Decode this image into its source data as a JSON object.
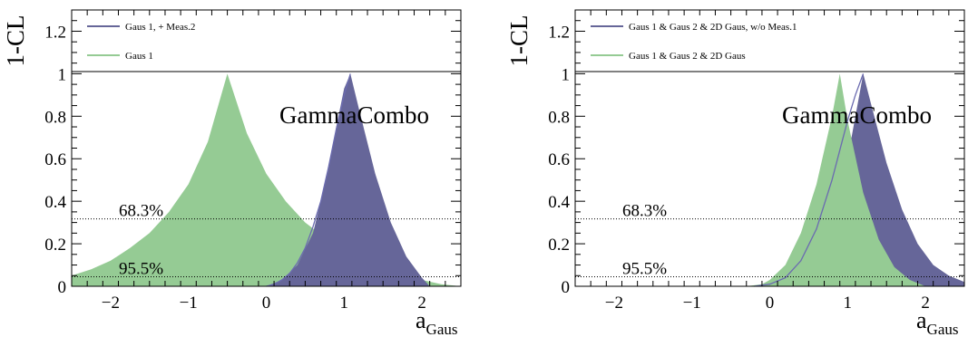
{
  "watermark": "GammaCombo",
  "colors": {
    "green_fill": "#95cb94",
    "blue_fill": "#666699",
    "blue_line": "#6b6bb0",
    "axis": "#000000"
  },
  "chart_data": [
    {
      "type": "area",
      "ylabel": "1-CL",
      "xlabel_main": "a",
      "xlabel_sub": "Gaus",
      "xlim": [
        -2.5,
        2.5
      ],
      "ylim": [
        0,
        1.3
      ],
      "x_ticks": [
        -2,
        -1,
        0,
        1,
        2
      ],
      "x_tick_labels": [
        "−2",
        "−1",
        "0",
        "1",
        "2"
      ],
      "y_ticks": [
        0,
        0.2,
        0.4,
        0.6,
        0.8,
        1,
        1.2
      ],
      "y_tick_labels": [
        "0",
        "0.2",
        "0.4",
        "0.6",
        "0.8",
        "1",
        "1.2"
      ],
      "cl_levels": [
        {
          "y": 0.317,
          "label": "68.3%"
        },
        {
          "y": 0.045,
          "label": "95.5%"
        }
      ],
      "legend": [
        {
          "label": "Gaus 1, + Meas.2",
          "style": "line",
          "color": "#666699"
        },
        {
          "label": "Gaus 1",
          "style": "line",
          "color": "#95cb94"
        }
      ],
      "series": [
        {
          "name": "Gaus 1",
          "style": "filled",
          "color": "#95cb94",
          "x": [
            -2.5,
            -2.25,
            -2.0,
            -1.75,
            -1.5,
            -1.25,
            -1.0,
            -0.75,
            -0.5,
            -0.25,
            0.0,
            0.25,
            0.5,
            0.75,
            1.0,
            1.25,
            1.5,
            1.75,
            2.0,
            2.25,
            2.5
          ],
          "y": [
            0.05,
            0.08,
            0.12,
            0.18,
            0.25,
            0.35,
            0.48,
            0.68,
            1.0,
            0.72,
            0.53,
            0.4,
            0.3,
            0.23,
            0.17,
            0.12,
            0.08,
            0.05,
            0.03,
            0.01,
            0.0
          ]
        },
        {
          "name": "Gaus 1, + Meas.2",
          "style": "filled",
          "color": "#666699",
          "x": [
            0.0,
            0.2,
            0.4,
            0.6,
            0.8,
            0.9,
            1.0,
            1.08,
            1.2,
            1.4,
            1.6,
            1.8,
            2.0,
            2.1
          ],
          "y": [
            0.0,
            0.03,
            0.1,
            0.25,
            0.55,
            0.75,
            0.93,
            1.0,
            0.82,
            0.53,
            0.3,
            0.14,
            0.04,
            0.0
          ]
        },
        {
          "name": "Gaus 1, + Meas.2 (lower contour)",
          "style": "line",
          "color": "#6b6bb0",
          "x": [
            0.0,
            0.1,
            0.2,
            0.3,
            0.4,
            0.5,
            0.6,
            0.7,
            0.8,
            0.9,
            1.0,
            1.08
          ],
          "y": [
            0.0,
            0.01,
            0.03,
            0.06,
            0.11,
            0.18,
            0.28,
            0.4,
            0.56,
            0.74,
            0.9,
            1.0
          ]
        }
      ]
    },
    {
      "type": "area",
      "ylabel": "1-CL",
      "xlabel_main": "a",
      "xlabel_sub": "Gaus",
      "xlim": [
        -2.5,
        2.5
      ],
      "ylim": [
        0,
        1.3
      ],
      "x_ticks": [
        -2,
        -1,
        0,
        1,
        2
      ],
      "x_tick_labels": [
        "−2",
        "−1",
        "0",
        "1",
        "2"
      ],
      "y_ticks": [
        0,
        0.2,
        0.4,
        0.6,
        0.8,
        1,
        1.2
      ],
      "y_tick_labels": [
        "0",
        "0.2",
        "0.4",
        "0.6",
        "0.8",
        "1",
        "1.2"
      ],
      "cl_levels": [
        {
          "y": 0.317,
          "label": "68.3%"
        },
        {
          "y": 0.045,
          "label": "95.5%"
        }
      ],
      "legend": [
        {
          "label": "Gaus 1 & Gaus 2 & 2D Gaus, w/o Meas.1",
          "style": "line",
          "color": "#666699"
        },
        {
          "label": "Gaus 1 & Gaus 2 & 2D Gaus",
          "style": "line",
          "color": "#95cb94"
        }
      ],
      "series": [
        {
          "name": "Gaus 1 & Gaus 2 & 2D Gaus, w/o Meas.1",
          "style": "filled",
          "color": "#666699",
          "x": [
            0.0,
            0.2,
            0.4,
            0.6,
            0.8,
            1.0,
            1.1,
            1.2,
            1.3,
            1.5,
            1.7,
            1.9,
            2.1,
            2.3,
            2.5
          ],
          "y": [
            0.0,
            0.02,
            0.06,
            0.15,
            0.32,
            0.6,
            0.8,
            1.0,
            0.86,
            0.58,
            0.36,
            0.2,
            0.1,
            0.05,
            0.02
          ]
        },
        {
          "name": "Gaus 1 & Gaus 2 & 2D Gaus",
          "style": "filled",
          "color": "#95cb94",
          "x": [
            -0.3,
            -0.1,
            0.0,
            0.2,
            0.4,
            0.6,
            0.8,
            0.9,
            1.0,
            1.2,
            1.4,
            1.6,
            1.8,
            2.0
          ],
          "y": [
            0.0,
            0.01,
            0.03,
            0.1,
            0.25,
            0.48,
            0.8,
            1.0,
            0.78,
            0.44,
            0.22,
            0.09,
            0.03,
            0.0
          ]
        },
        {
          "name": "Gaus 1 & Gaus 2 & 2D Gaus, w/o Meas.1 (lower contour)",
          "style": "line",
          "color": "#6b6bb0",
          "x": [
            -0.2,
            0.0,
            0.2,
            0.4,
            0.6,
            0.8,
            0.9,
            1.0,
            1.1,
            1.2
          ],
          "y": [
            0.0,
            0.01,
            0.04,
            0.12,
            0.27,
            0.5,
            0.64,
            0.78,
            0.9,
            1.0
          ]
        }
      ]
    }
  ]
}
